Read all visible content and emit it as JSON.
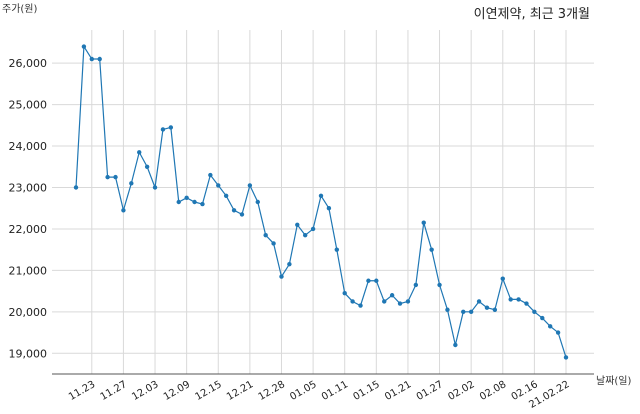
{
  "chart_data": {
    "type": "line",
    "title": "이연제약, 최근 3개월",
    "ylabel": "주가(원)",
    "xlabel": "날짜(일)",
    "ylim": [
      18500,
      26800
    ],
    "yticks": [
      "19,000",
      "20,000",
      "21,000",
      "22,000",
      "23,000",
      "24,000",
      "25,000",
      "26,000"
    ],
    "ytick_values": [
      19000,
      20000,
      21000,
      22000,
      23000,
      24000,
      25000,
      26000
    ],
    "xticks": [
      "11.23",
      "11.27",
      "12.03",
      "12.09",
      "12.15",
      "12.21",
      "12.28",
      "01.05",
      "01.11",
      "01.15",
      "01.21",
      "01.27",
      "02.02",
      "02.08",
      "02.16",
      "21.02.22"
    ],
    "xtick_indices": [
      2,
      6,
      10,
      14,
      18,
      22,
      26,
      30,
      34,
      38,
      42,
      46,
      50,
      54,
      58,
      62
    ],
    "line_color": "#1f77b4",
    "grid": true,
    "series": [
      {
        "values": [
          23000,
          26400,
          26100,
          26100,
          23250,
          23250,
          22450,
          23100,
          23850,
          23500,
          23000,
          24400,
          24450,
          22650,
          22750,
          22650,
          22600,
          23300,
          23050,
          22800,
          22450,
          22350,
          23050,
          22650,
          21850,
          21650,
          20850,
          21150,
          22100,
          21850,
          22000,
          22800,
          22500,
          21500,
          20450,
          20250,
          20150,
          20750,
          20750,
          20250,
          20400,
          20200,
          20250,
          20650,
          22150,
          21500,
          20650,
          20050,
          19200,
          20000,
          20000,
          20250,
          20100,
          20050,
          20800,
          20300,
          20300,
          20200,
          20000,
          19850,
          19650,
          19500,
          18900
        ]
      }
    ]
  }
}
